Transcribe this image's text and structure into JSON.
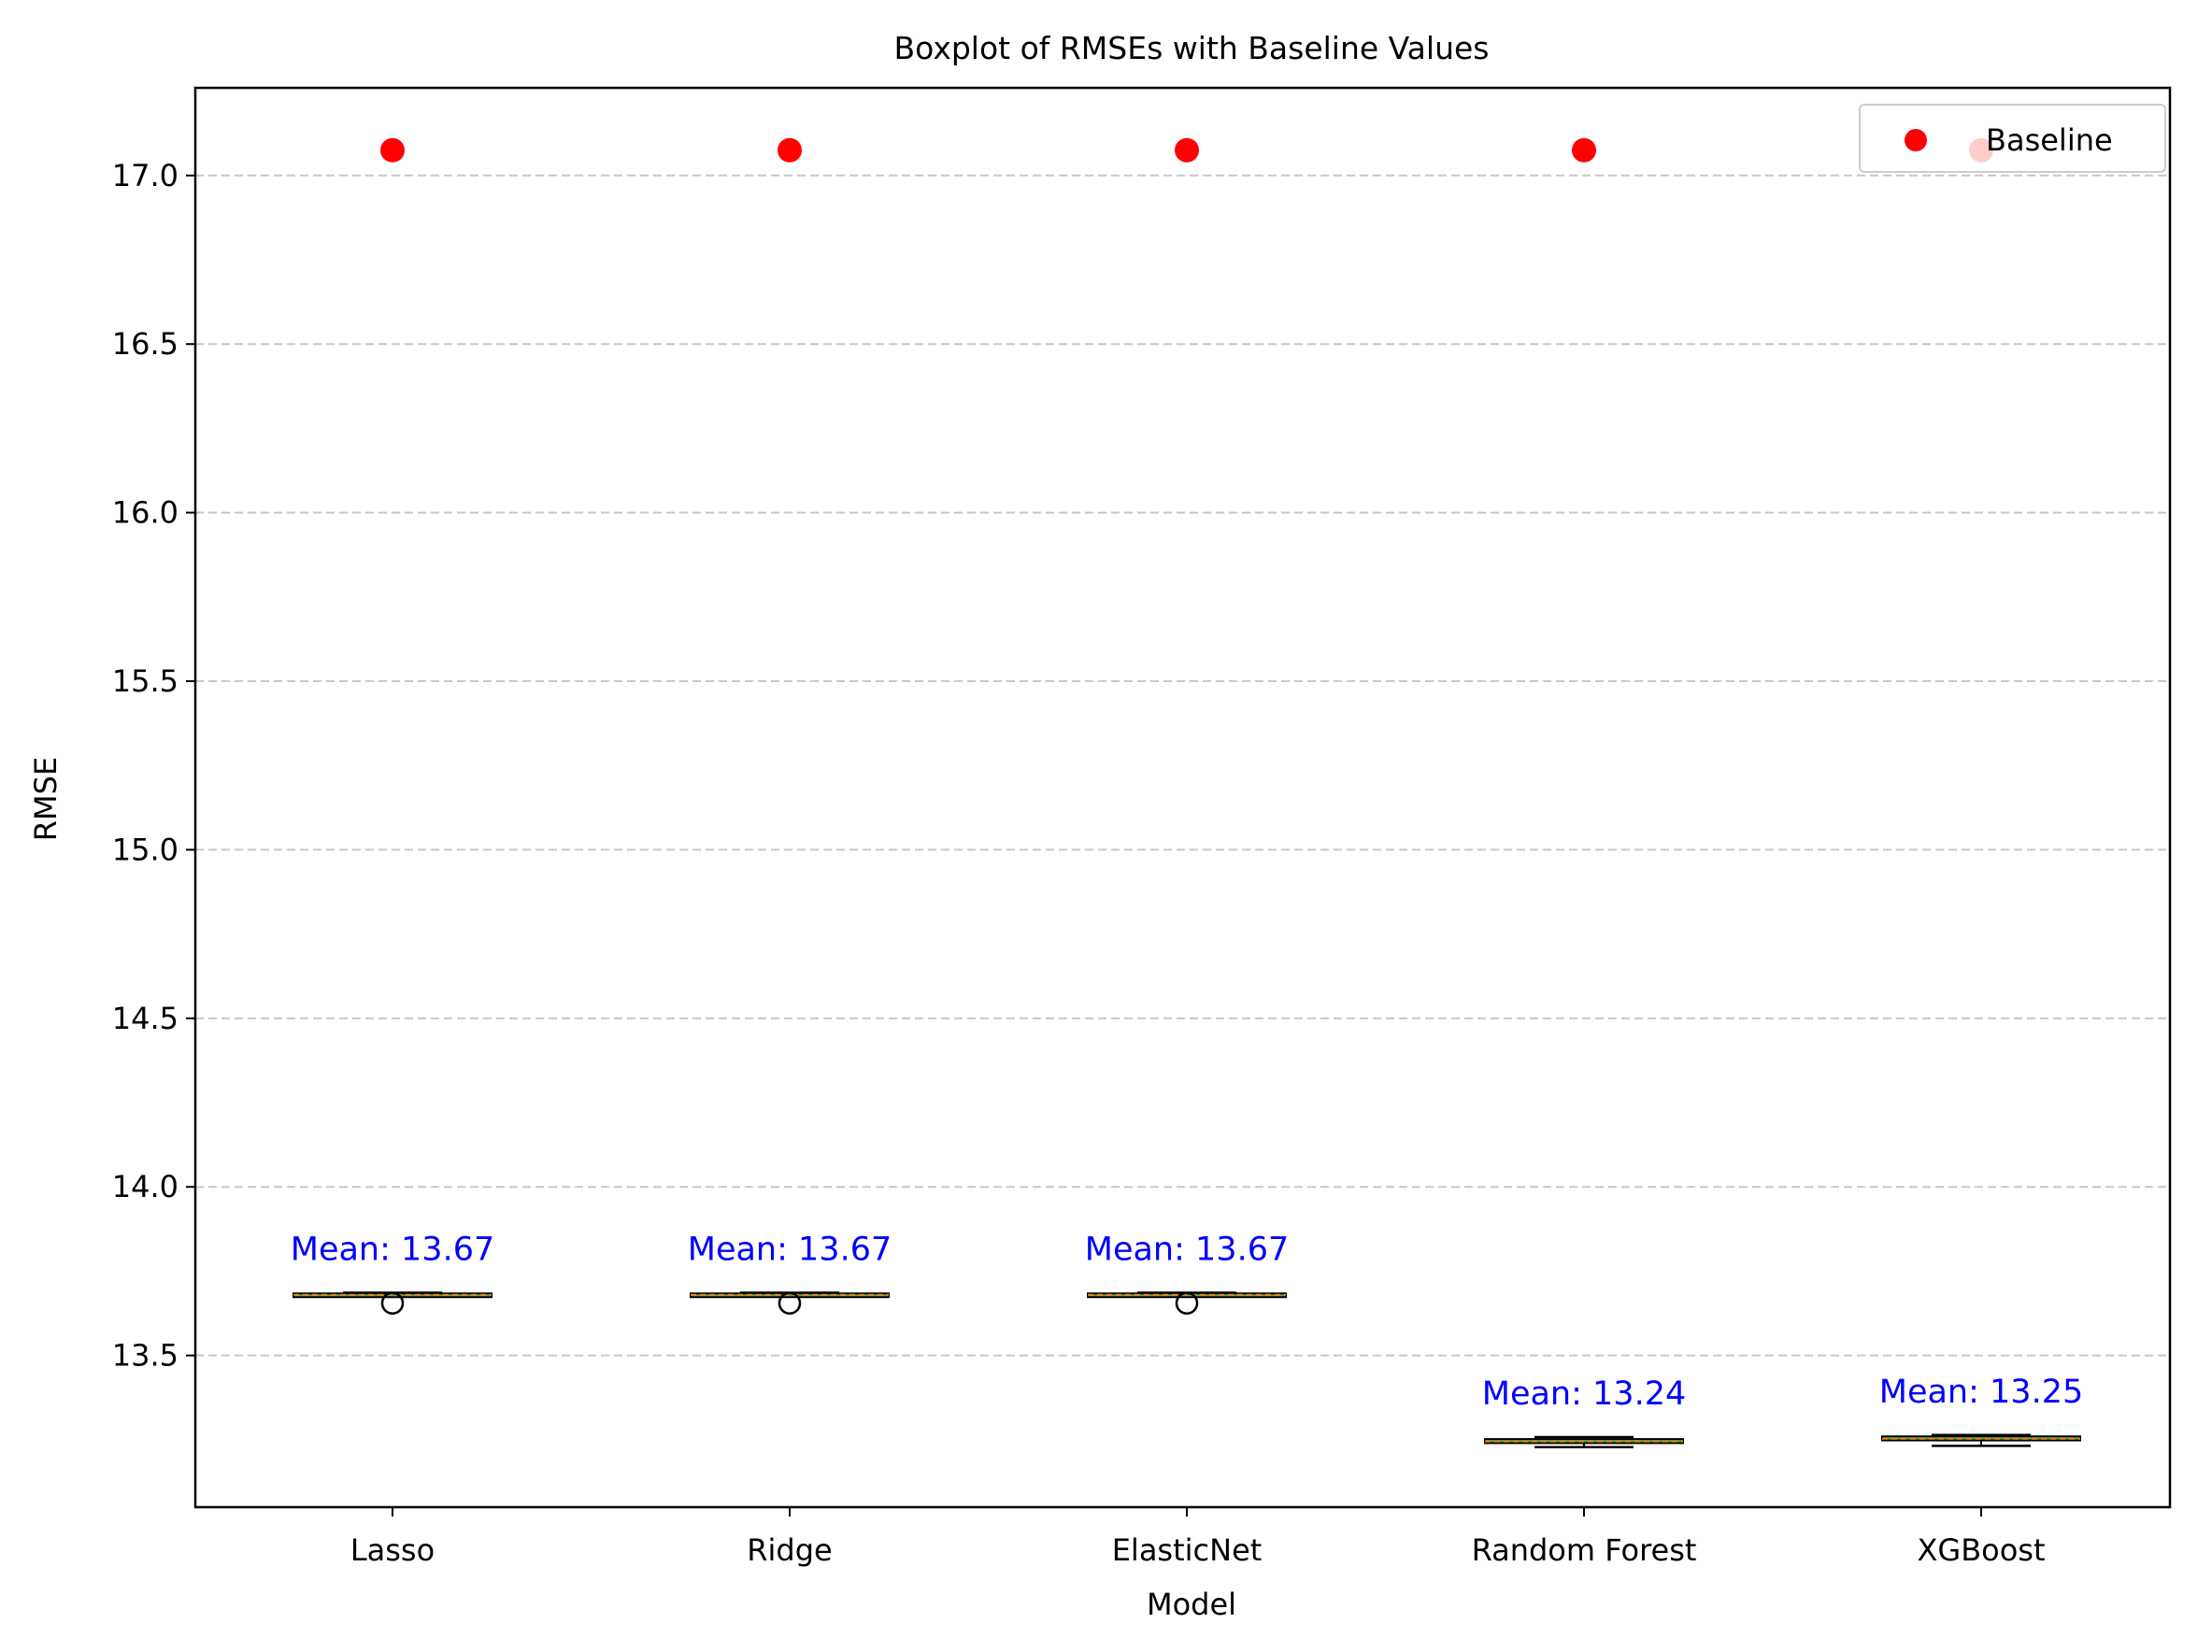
{
  "chart_data": {
    "type": "box",
    "title": "Boxplot of RMSEs with Baseline Values",
    "xlabel": "Model",
    "ylabel": "RMSE",
    "categories": [
      "Lasso",
      "Ridge",
      "ElasticNet",
      "Random Forest",
      "XGBoost"
    ],
    "ylim": [
      13.05,
      17.26
    ],
    "yticks": [
      13.5,
      14.0,
      14.5,
      15.0,
      15.5,
      16.0,
      16.5,
      17.0
    ],
    "ytick_labels": [
      "13.5",
      "14.0",
      "14.5",
      "15.0",
      "15.5",
      "16.0",
      "16.5",
      "17.0"
    ],
    "grid": {
      "y": true,
      "style": "dashed"
    },
    "boxes": [
      {
        "category": "Lasso",
        "whisker_low": 13.675,
        "q1": 13.676,
        "median": 13.68,
        "q3": 13.684,
        "whisker_high": 13.686,
        "outliers": [
          13.655
        ],
        "mean_label": "Mean: 13.67"
      },
      {
        "category": "Ridge",
        "whisker_low": 13.675,
        "q1": 13.676,
        "median": 13.68,
        "q3": 13.684,
        "whisker_high": 13.686,
        "outliers": [
          13.655
        ],
        "mean_label": "Mean: 13.67"
      },
      {
        "category": "ElasticNet",
        "whisker_low": 13.675,
        "q1": 13.676,
        "median": 13.68,
        "q3": 13.684,
        "whisker_high": 13.686,
        "outliers": [
          13.655
        ],
        "mean_label": "Mean: 13.67"
      },
      {
        "category": "Random Forest",
        "whisker_low": 13.228,
        "q1": 13.24,
        "median": 13.245,
        "q3": 13.252,
        "whisker_high": 13.258,
        "outliers": [],
        "mean_label": "Mean: 13.24"
      },
      {
        "category": "XGBoost",
        "whisker_low": 13.232,
        "q1": 13.248,
        "median": 13.253,
        "q3": 13.26,
        "whisker_high": 13.264,
        "outliers": [],
        "mean_label": "Mean: 13.25"
      }
    ],
    "baseline": {
      "name": "Baseline",
      "values": [
        17.075,
        17.075,
        17.075,
        17.075,
        17.075
      ]
    },
    "legend": {
      "placement": "top-right",
      "entries": [
        "Baseline"
      ]
    },
    "colors": {
      "box_fill": "#4caf50",
      "median": "#ff7f0e",
      "baseline": "#ff0000",
      "mean_text": "#0000ff",
      "grid": "#c8c8c8"
    }
  }
}
